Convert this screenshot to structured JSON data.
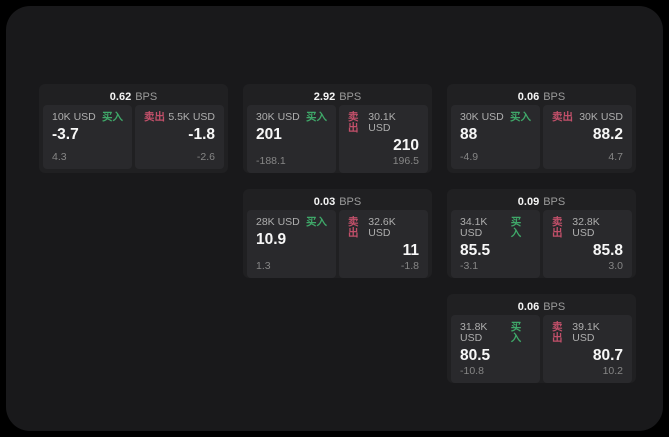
{
  "page": {
    "background": "#000000",
    "panel_background": "#19191b"
  },
  "labels": {
    "bps_unit": "BPS",
    "buy": "买入",
    "sell": "卖出"
  },
  "colors": {
    "buy_green": "#3fa869",
    "sell_red": "#c2506a",
    "value_white": "#f7f7f7",
    "label_gray": "#aeaeae",
    "sub_gray": "#868686",
    "card_bg": "#202022",
    "tile_bg": "#29292c"
  },
  "cards": [
    {
      "bps": "0.62",
      "buy": {
        "amount": "10K USD",
        "value": "-3.7",
        "sub": "4.3"
      },
      "sell": {
        "amount": "5.5K USD",
        "value": "-1.8",
        "sub": "-2.6"
      }
    },
    {
      "bps": "2.92",
      "buy": {
        "amount": "30K USD",
        "value": "201",
        "sub": "-188.1"
      },
      "sell": {
        "amount": "30.1K USD",
        "value": "210",
        "sub": "196.5"
      }
    },
    {
      "bps": "0.06",
      "buy": {
        "amount": "30K USD",
        "value": "88",
        "sub": "-4.9"
      },
      "sell": {
        "amount": "30K USD",
        "value": "88.2",
        "sub": "4.7"
      }
    },
    {
      "bps": "0.03",
      "buy": {
        "amount": "28K USD",
        "value": "10.9",
        "sub": "1.3"
      },
      "sell": {
        "amount": "32.6K USD",
        "value": "11",
        "sub": "-1.8"
      }
    },
    {
      "bps": "0.09",
      "buy": {
        "amount": "34.1K USD",
        "value": "85.5",
        "sub": "-3.1"
      },
      "sell": {
        "amount": "32.8K USD",
        "value": "85.8",
        "sub": "3.0"
      }
    },
    {
      "bps": "0.06",
      "buy": {
        "amount": "31.8K USD",
        "value": "80.5",
        "sub": "-10.8"
      },
      "sell": {
        "amount": "39.1K USD",
        "value": "80.7",
        "sub": "10.2"
      }
    }
  ]
}
